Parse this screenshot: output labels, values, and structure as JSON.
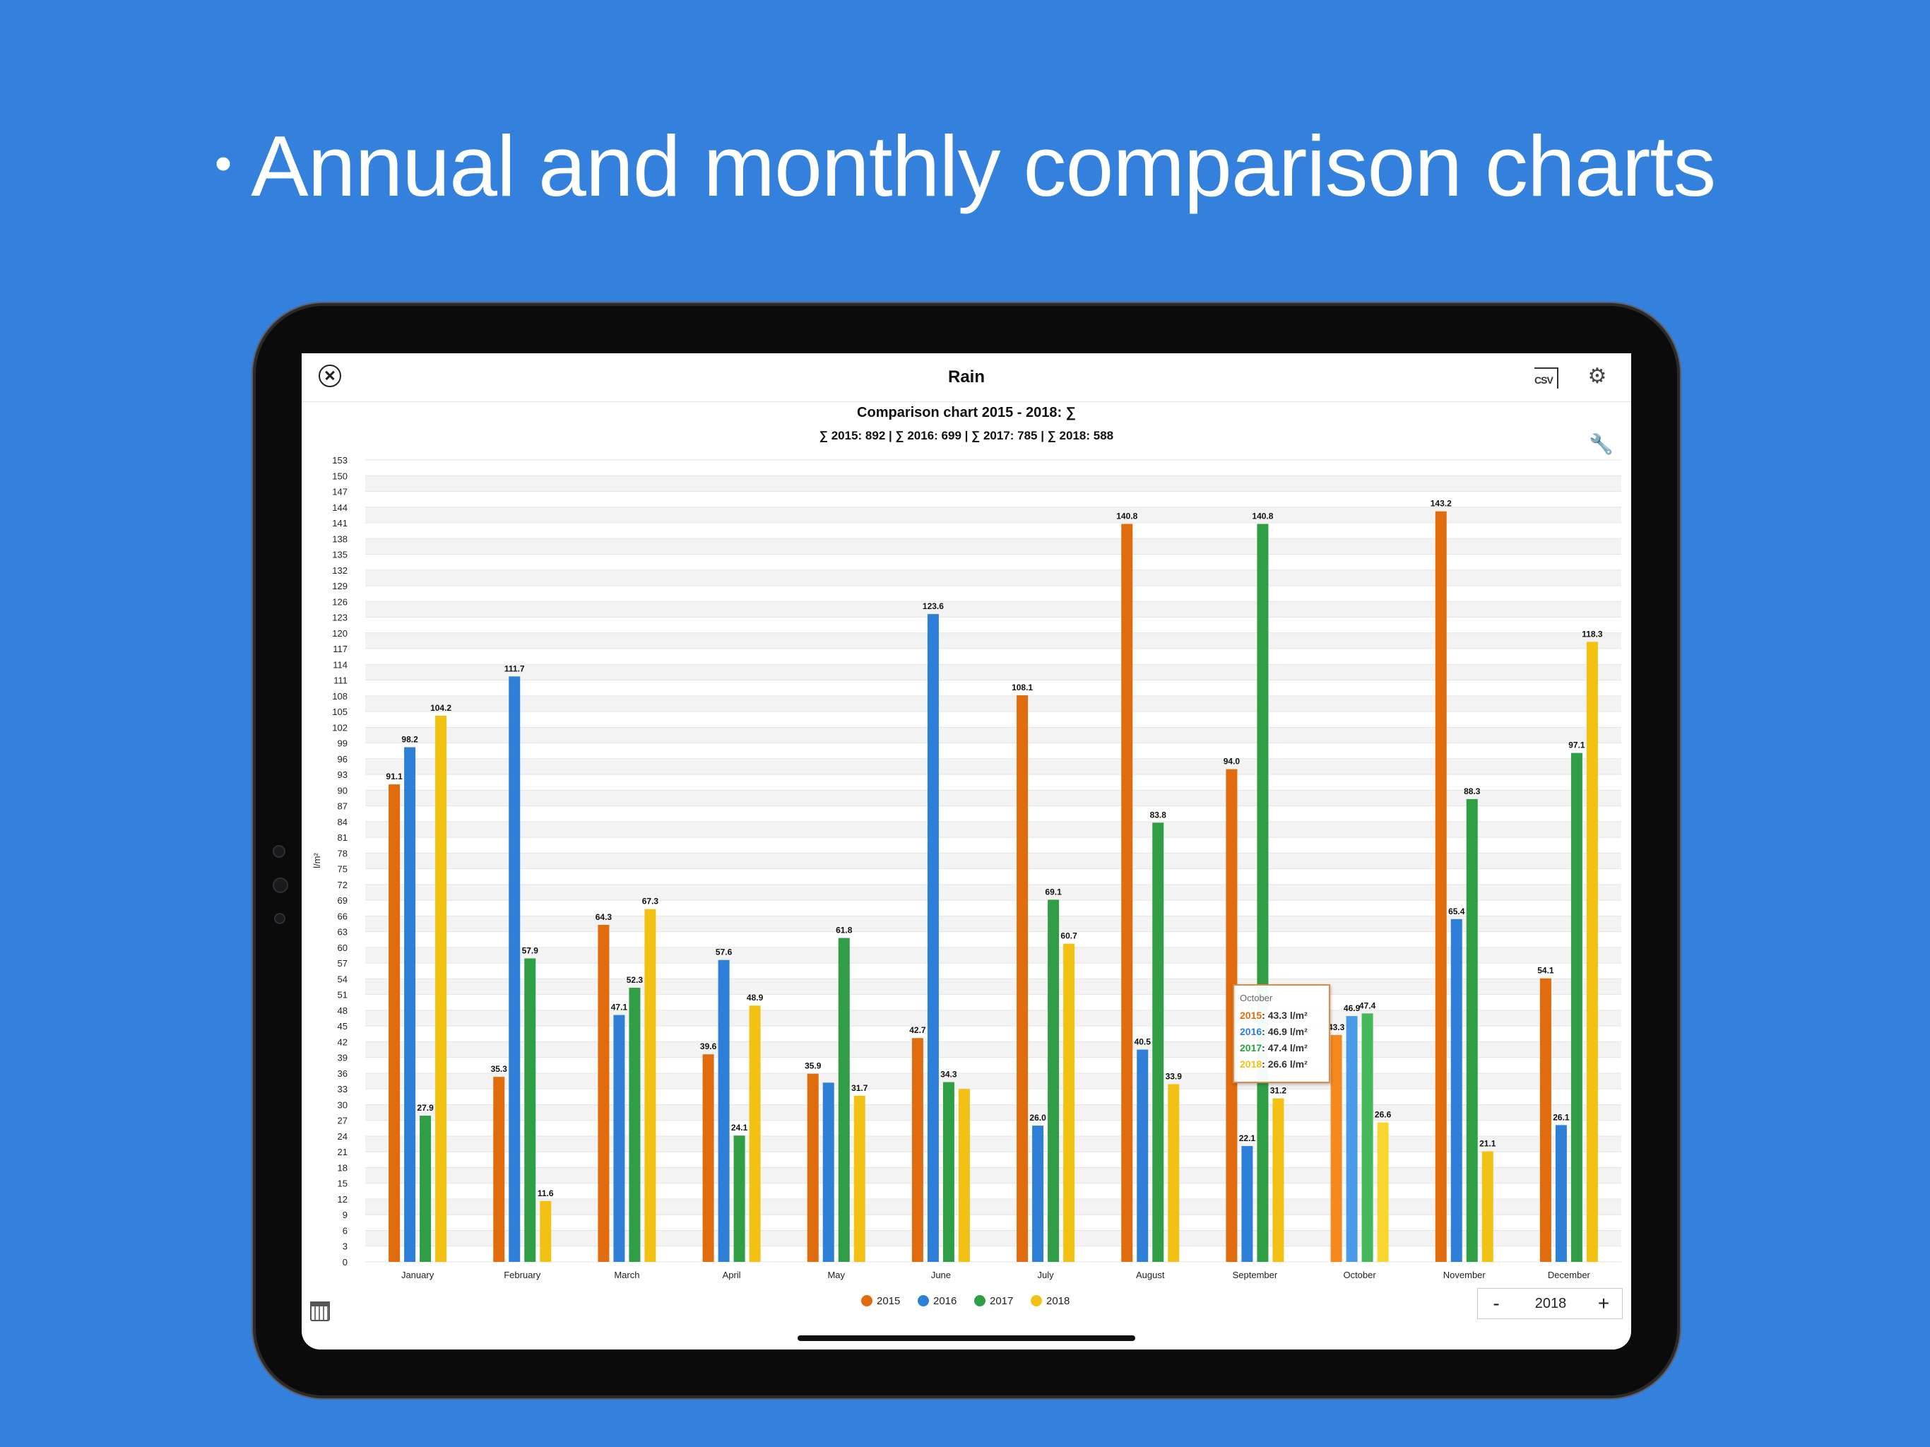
{
  "headline": "Annual and monthly comparison charts",
  "navbar": {
    "title": "Rain"
  },
  "chart_data": {
    "type": "bar",
    "title": "Comparison chart 2015 - 2018: ∑",
    "subtitle": "∑ 2015: 892 | ∑ 2016: 699 | ∑ 2017: 785 | ∑ 2018: 588",
    "ylabel": "l/m²",
    "xlabel": "",
    "ylim": [
      0,
      153
    ],
    "ytick_step": 3,
    "grid": true,
    "legend_position": "bottom-center",
    "categories": [
      "January",
      "February",
      "March",
      "April",
      "May",
      "June",
      "July",
      "August",
      "September",
      "October",
      "November",
      "December"
    ],
    "series": [
      {
        "name": "2015",
        "color": "#e06c0e",
        "values": [
          91.1,
          35.3,
          64.3,
          39.6,
          35.9,
          42.7,
          108.1,
          140.8,
          94.0,
          43.3,
          143.2,
          54.1
        ]
      },
      {
        "name": "2016",
        "color": "#2e7fd8",
        "values": [
          98.2,
          111.7,
          47.1,
          57.6,
          34.2,
          123.6,
          26.0,
          40.5,
          22.1,
          46.9,
          65.4,
          26.1
        ]
      },
      {
        "name": "2017",
        "color": "#2f9e44",
        "values": [
          27.9,
          57.9,
          52.3,
          24.1,
          61.8,
          34.3,
          69.1,
          83.8,
          140.8,
          47.4,
          88.3,
          97.1
        ]
      },
      {
        "name": "2018",
        "color": "#f2c114",
        "values": [
          104.2,
          11.6,
          67.3,
          48.9,
          31.7,
          33.0,
          60.7,
          33.9,
          31.2,
          26.6,
          21.1,
          118.3
        ]
      }
    ],
    "unlabeled_bars": [
      [
        1,
        4
      ],
      [
        3,
        5
      ]
    ],
    "highlight_index": 9,
    "tooltip": {
      "month": "October",
      "rows": [
        {
          "year": "2015",
          "text": ": 43.3 l/m²",
          "color": "#e06c0e"
        },
        {
          "year": "2016",
          "text": ": 46.9 l/m²",
          "color": "#2e7fd8"
        },
        {
          "year": "2017",
          "text": ": 47.4 l/m²",
          "color": "#2f9e44"
        },
        {
          "year": "2018",
          "text": ": 26.6 l/m²",
          "color": "#f2c114"
        }
      ]
    }
  },
  "stepper": {
    "minus": "-",
    "year": "2018",
    "plus": "+"
  },
  "icons": {
    "close": "close-circle-icon",
    "csv": "csv-download-icon",
    "csv_text": "CSV",
    "settings": "gear-icon",
    "wrench": "wrench-icon",
    "calendar": "calendar-icon"
  }
}
